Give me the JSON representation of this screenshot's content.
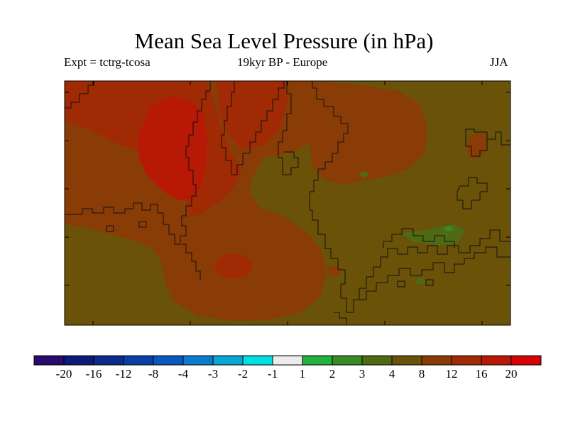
{
  "title": "Mean Sea Level Pressure (in hPa)",
  "experiment": "Expt = tctrg-tcosa",
  "period": "19kyr BP - Europe",
  "season": "JJA",
  "colorbar": {
    "colors": [
      "#2a0a6a",
      "#0d1a78",
      "#0c2c8c",
      "#0a3fa6",
      "#0a58bd",
      "#0a7ccc",
      "#0aa4d6",
      "#00e0e0",
      "#ececec",
      "#22b040",
      "#3a8a24",
      "#4e6a14",
      "#6a5208",
      "#8a3c06",
      "#a02a04",
      "#b81806",
      "#d40404"
    ],
    "labels": [
      "-20",
      "-16",
      "-12",
      "-8",
      "-4",
      "-3",
      "-2",
      "-1",
      "1",
      "2",
      "3",
      "4",
      "8",
      "12",
      "16",
      "20"
    ]
  }
}
